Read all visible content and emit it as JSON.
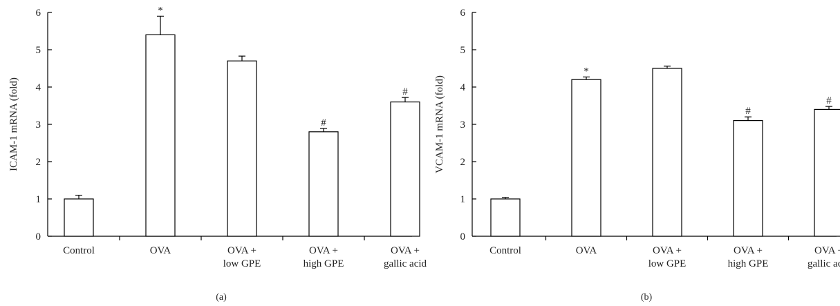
{
  "chart_data": [
    {
      "type": "bar",
      "panel_label": "(a)",
      "ylabel": "ICAM-1 mRNA (fold)",
      "ylim": [
        0,
        6
      ],
      "yticks": [
        "0",
        "1",
        "2",
        "3",
        "4",
        "5",
        "6"
      ],
      "categories": [
        [
          "Control"
        ],
        [
          "OVA"
        ],
        [
          "OVA +",
          "low GPE"
        ],
        [
          "OVA +",
          "high GPE"
        ],
        [
          "OVA +",
          "gallic acid"
        ]
      ],
      "values": [
        1.0,
        5.4,
        4.7,
        2.8,
        3.6
      ],
      "errors": [
        0.1,
        0.5,
        0.13,
        0.09,
        0.12
      ],
      "significance": [
        "",
        "*",
        "",
        "#",
        "#"
      ]
    },
    {
      "type": "bar",
      "panel_label": "(b)",
      "ylabel": "VCAM-1 mRNA (fold)",
      "ylim": [
        0,
        6
      ],
      "yticks": [
        "0",
        "1",
        "2",
        "3",
        "4",
        "5",
        "6"
      ],
      "categories": [
        [
          "Control"
        ],
        [
          "OVA"
        ],
        [
          "OVA +",
          "low GPE"
        ],
        [
          "OVA +",
          "high GPE"
        ],
        [
          "OVA +",
          "gallic acid"
        ]
      ],
      "values": [
        1.0,
        4.2,
        4.5,
        3.1,
        3.4
      ],
      "errors": [
        0.04,
        0.07,
        0.06,
        0.1,
        0.08
      ],
      "significance": [
        "",
        "*",
        "",
        "#",
        "#"
      ]
    }
  ]
}
